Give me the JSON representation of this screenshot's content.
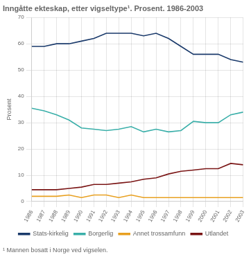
{
  "chart_data": {
    "type": "line",
    "title": "Inngåtte ekteskap, etter vigseltype¹. Prosent. 1986-2003",
    "ylabel": "Prosent",
    "annotations": [
      "¹ Mannen bosatt i Norge ved vigselen."
    ],
    "x": [
      1986,
      1987,
      1988,
      1989,
      1990,
      1991,
      1992,
      1993,
      1994,
      1995,
      1996,
      1997,
      1998,
      1999,
      2000,
      2001,
      2002,
      2003
    ],
    "series": [
      {
        "name": "Stats-kirkelig",
        "color": "#1a3a6b",
        "values": [
          59,
          59,
          60,
          60,
          61,
          62,
          64,
          64,
          64,
          63,
          64,
          62,
          59,
          56,
          56,
          56,
          54,
          53
        ]
      },
      {
        "name": "Borgerlig",
        "color": "#3aafa9",
        "values": [
          35.5,
          34.5,
          33,
          31,
          28,
          27.5,
          27,
          27.5,
          28.5,
          26.5,
          27.5,
          26.5,
          27,
          30.5,
          30,
          30,
          33,
          34
        ]
      },
      {
        "name": "Annet trossamfunn",
        "color": "#e8a020",
        "values": [
          2,
          2,
          2,
          2.5,
          1.5,
          2.5,
          2.5,
          1.5,
          2.5,
          1.5,
          1.5,
          1.5,
          1.5,
          1.5,
          1.5,
          1.5,
          1.5,
          1.5
        ]
      },
      {
        "name": "Utlandet",
        "color": "#7a1515",
        "values": [
          4.5,
          4.5,
          4.5,
          5,
          5.5,
          6.5,
          6.5,
          7,
          7.5,
          8.5,
          9,
          10.5,
          11.5,
          12,
          12.5,
          12.5,
          14.5,
          14
        ]
      }
    ],
    "xlim": [
      1986,
      2003
    ],
    "xticks": [
      1986,
      1987,
      1988,
      1989,
      1990,
      1991,
      1992,
      1993,
      1994,
      1995,
      1996,
      1997,
      1998,
      1999,
      2000,
      2001,
      2002,
      2003
    ],
    "ylim": [
      0,
      70
    ],
    "yticks": [
      0,
      10,
      20,
      30,
      40,
      50,
      60,
      70
    ],
    "grid": true,
    "legend": "bottom"
  }
}
